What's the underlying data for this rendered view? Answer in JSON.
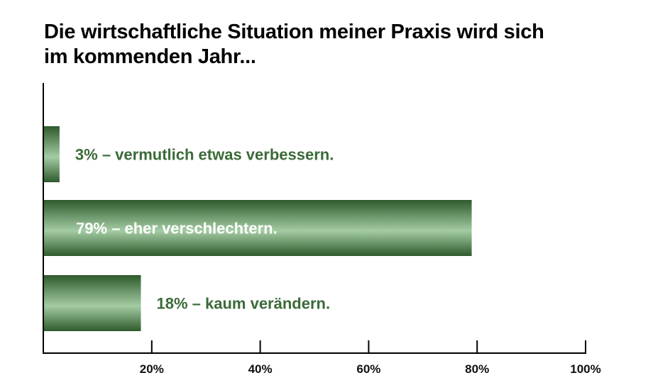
{
  "chart_data": {
    "type": "bar",
    "orientation": "horizontal",
    "title": [
      "Die wirtschaftliche Situation meiner Praxis wird sich",
      "im kommenden Jahr..."
    ],
    "categories": [
      "3% – vermutlich etwas verbessern.",
      "79% – eher verschlechtern.",
      "18% – kaum verändern."
    ],
    "values": [
      3,
      79,
      18
    ],
    "x_ticks": [
      "20%",
      "40%",
      "60%",
      "80%",
      "100%"
    ],
    "x_tick_values": [
      20,
      40,
      60,
      80,
      100
    ],
    "xlim": [
      0,
      100
    ],
    "grid": false,
    "legend": "none",
    "colors": {
      "bar_dark": "#2e5a2c",
      "bar_light": "#a4cca4",
      "label_outside": "#3b6a38",
      "label_inside": "#ffffff",
      "axis": "#000000"
    }
  }
}
